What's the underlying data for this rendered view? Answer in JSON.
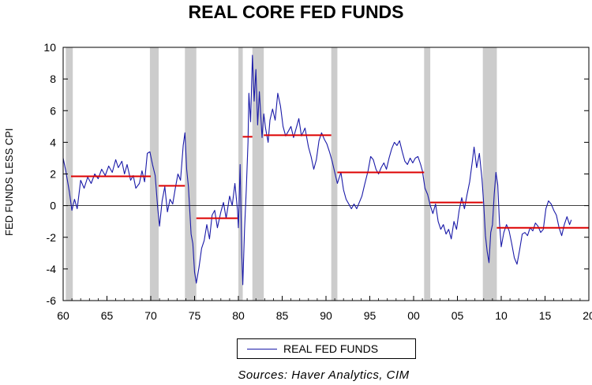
{
  "chart_data": {
    "type": "line",
    "title": "REAL CORE FED FUNDS",
    "ylabel": "FED FUNDS LESS CPI",
    "xlabel": "",
    "xlim": [
      1960,
      2020
    ],
    "ylim": [
      -6,
      10
    ],
    "x_ticks": [
      "60",
      "65",
      "70",
      "75",
      "80",
      "85",
      "90",
      "95",
      "00",
      "05",
      "10",
      "15",
      "20"
    ],
    "y_ticks": [
      "10",
      "8",
      "6",
      "4",
      "2",
      "0",
      "-2",
      "-4",
      "-6"
    ],
    "grid": false,
    "zero_line": true,
    "legend_position": "bottom-center",
    "series": [
      {
        "name": "REAL FED FUNDS",
        "color": "#1a1aa8",
        "points": [
          [
            1960.0,
            3.0
          ],
          [
            1960.3,
            2.2
          ],
          [
            1960.7,
            0.9
          ],
          [
            1961.0,
            -0.3
          ],
          [
            1961.3,
            0.4
          ],
          [
            1961.6,
            -0.2
          ],
          [
            1962.0,
            1.6
          ],
          [
            1962.4,
            1.1
          ],
          [
            1962.8,
            1.8
          ],
          [
            1963.2,
            1.4
          ],
          [
            1963.6,
            2.0
          ],
          [
            1964.0,
            1.7
          ],
          [
            1964.4,
            2.3
          ],
          [
            1964.8,
            1.9
          ],
          [
            1965.2,
            2.5
          ],
          [
            1965.6,
            2.1
          ],
          [
            1966.0,
            2.9
          ],
          [
            1966.3,
            2.4
          ],
          [
            1966.7,
            2.8
          ],
          [
            1967.0,
            2.0
          ],
          [
            1967.3,
            2.6
          ],
          [
            1967.7,
            1.6
          ],
          [
            1968.0,
            1.9
          ],
          [
            1968.3,
            1.1
          ],
          [
            1968.7,
            1.4
          ],
          [
            1969.0,
            2.2
          ],
          [
            1969.3,
            1.5
          ],
          [
            1969.6,
            3.3
          ],
          [
            1969.9,
            3.4
          ],
          [
            1970.2,
            2.6
          ],
          [
            1970.5,
            1.9
          ],
          [
            1970.8,
            -0.2
          ],
          [
            1971.0,
            -1.3
          ],
          [
            1971.3,
            0.3
          ],
          [
            1971.6,
            1.2
          ],
          [
            1971.9,
            -0.4
          ],
          [
            1972.2,
            0.4
          ],
          [
            1972.5,
            0.1
          ],
          [
            1972.8,
            1.1
          ],
          [
            1973.1,
            2.0
          ],
          [
            1973.4,
            1.6
          ],
          [
            1973.7,
            3.8
          ],
          [
            1973.9,
            4.6
          ],
          [
            1974.1,
            2.3
          ],
          [
            1974.3,
            1.2
          ],
          [
            1974.6,
            -1.8
          ],
          [
            1974.8,
            -2.4
          ],
          [
            1975.0,
            -4.2
          ],
          [
            1975.2,
            -4.9
          ],
          [
            1975.5,
            -3.9
          ],
          [
            1975.8,
            -2.7
          ],
          [
            1976.1,
            -2.2
          ],
          [
            1976.4,
            -1.2
          ],
          [
            1976.7,
            -2.1
          ],
          [
            1977.0,
            -0.6
          ],
          [
            1977.3,
            -0.3
          ],
          [
            1977.6,
            -1.4
          ],
          [
            1978.0,
            -0.4
          ],
          [
            1978.3,
            0.2
          ],
          [
            1978.6,
            -0.8
          ],
          [
            1979.0,
            0.6
          ],
          [
            1979.3,
            0.0
          ],
          [
            1979.6,
            1.4
          ],
          [
            1979.9,
            -0.3
          ],
          [
            1980.0,
            -1.4
          ],
          [
            1980.2,
            2.6
          ],
          [
            1980.4,
            -3.2
          ],
          [
            1980.5,
            -5.0
          ],
          [
            1980.7,
            -1.5
          ],
          [
            1980.9,
            1.0
          ],
          [
            1981.1,
            4.0
          ],
          [
            1981.2,
            7.1
          ],
          [
            1981.4,
            5.3
          ],
          [
            1981.6,
            9.5
          ],
          [
            1981.8,
            6.6
          ],
          [
            1982.0,
            8.6
          ],
          [
            1982.2,
            5.1
          ],
          [
            1982.4,
            7.2
          ],
          [
            1982.7,
            4.3
          ],
          [
            1982.9,
            5.8
          ],
          [
            1983.1,
            4.9
          ],
          [
            1983.4,
            4.0
          ],
          [
            1983.6,
            5.4
          ],
          [
            1983.9,
            6.1
          ],
          [
            1984.2,
            5.4
          ],
          [
            1984.5,
            7.1
          ],
          [
            1984.8,
            6.3
          ],
          [
            1985.1,
            5.0
          ],
          [
            1985.4,
            4.4
          ],
          [
            1985.7,
            4.7
          ],
          [
            1986.0,
            5.0
          ],
          [
            1986.3,
            4.3
          ],
          [
            1986.6,
            4.9
          ],
          [
            1986.9,
            5.5
          ],
          [
            1987.2,
            4.4
          ],
          [
            1987.6,
            4.9
          ],
          [
            1988.0,
            3.7
          ],
          [
            1988.3,
            3.1
          ],
          [
            1988.6,
            2.3
          ],
          [
            1988.9,
            2.9
          ],
          [
            1989.2,
            4.1
          ],
          [
            1989.5,
            4.6
          ],
          [
            1989.8,
            4.2
          ],
          [
            1990.1,
            3.9
          ],
          [
            1990.4,
            3.4
          ],
          [
            1990.7,
            2.8
          ],
          [
            1991.0,
            2.1
          ],
          [
            1991.3,
            1.4
          ],
          [
            1991.7,
            2.1
          ],
          [
            1992.0,
            1.0
          ],
          [
            1992.3,
            0.4
          ],
          [
            1992.6,
            0.1
          ],
          [
            1992.9,
            -0.2
          ],
          [
            1993.2,
            0.1
          ],
          [
            1993.5,
            -0.2
          ],
          [
            1993.8,
            0.2
          ],
          [
            1994.1,
            0.6
          ],
          [
            1994.4,
            1.3
          ],
          [
            1994.8,
            2.2
          ],
          [
            1995.1,
            3.1
          ],
          [
            1995.4,
            2.9
          ],
          [
            1995.7,
            2.3
          ],
          [
            1996.0,
            2.0
          ],
          [
            1996.3,
            2.4
          ],
          [
            1996.6,
            2.7
          ],
          [
            1996.9,
            2.3
          ],
          [
            1997.2,
            3.0
          ],
          [
            1997.5,
            3.6
          ],
          [
            1997.8,
            4.0
          ],
          [
            1998.1,
            3.8
          ],
          [
            1998.4,
            4.1
          ],
          [
            1998.7,
            3.4
          ],
          [
            1999.0,
            2.8
          ],
          [
            1999.3,
            2.6
          ],
          [
            1999.6,
            3.0
          ],
          [
            1999.9,
            2.7
          ],
          [
            2000.2,
            3.0
          ],
          [
            2000.5,
            3.1
          ],
          [
            2000.8,
            2.6
          ],
          [
            2001.0,
            2.2
          ],
          [
            2001.3,
            1.1
          ],
          [
            2001.6,
            0.7
          ],
          [
            2001.9,
            0.0
          ],
          [
            2002.2,
            -0.5
          ],
          [
            2002.5,
            0.1
          ],
          [
            2002.8,
            -1.0
          ],
          [
            2003.1,
            -1.5
          ],
          [
            2003.4,
            -1.2
          ],
          [
            2003.7,
            -1.8
          ],
          [
            2004.0,
            -1.5
          ],
          [
            2004.3,
            -2.1
          ],
          [
            2004.6,
            -1.0
          ],
          [
            2004.9,
            -1.5
          ],
          [
            2005.2,
            -0.3
          ],
          [
            2005.5,
            0.5
          ],
          [
            2005.8,
            -0.2
          ],
          [
            2006.1,
            0.7
          ],
          [
            2006.4,
            1.5
          ],
          [
            2006.7,
            2.8
          ],
          [
            2006.9,
            3.7
          ],
          [
            2007.2,
            2.4
          ],
          [
            2007.5,
            3.3
          ],
          [
            2007.8,
            1.7
          ],
          [
            2008.0,
            0.1
          ],
          [
            2008.2,
            -1.9
          ],
          [
            2008.4,
            -2.9
          ],
          [
            2008.6,
            -3.6
          ],
          [
            2008.8,
            -1.7
          ],
          [
            2009.0,
            -1.2
          ],
          [
            2009.2,
            0.7
          ],
          [
            2009.4,
            2.1
          ],
          [
            2009.6,
            1.3
          ],
          [
            2009.8,
            -1.1
          ],
          [
            2010.0,
            -2.6
          ],
          [
            2010.3,
            -1.7
          ],
          [
            2010.6,
            -1.2
          ],
          [
            2010.9,
            -1.6
          ],
          [
            2011.2,
            -2.4
          ],
          [
            2011.5,
            -3.3
          ],
          [
            2011.8,
            -3.7
          ],
          [
            2012.1,
            -2.8
          ],
          [
            2012.4,
            -1.8
          ],
          [
            2012.7,
            -1.7
          ],
          [
            2013.0,
            -1.9
          ],
          [
            2013.3,
            -1.4
          ],
          [
            2013.6,
            -1.6
          ],
          [
            2013.9,
            -1.1
          ],
          [
            2014.2,
            -1.3
          ],
          [
            2014.5,
            -1.7
          ],
          [
            2014.8,
            -1.5
          ],
          [
            2015.1,
            -0.2
          ],
          [
            2015.4,
            0.3
          ],
          [
            2015.7,
            0.1
          ],
          [
            2016.0,
            -0.3
          ],
          [
            2016.3,
            -0.6
          ],
          [
            2016.6,
            -1.4
          ],
          [
            2016.9,
            -1.9
          ],
          [
            2017.2,
            -1.2
          ],
          [
            2017.5,
            -0.7
          ],
          [
            2017.8,
            -1.2
          ],
          [
            2018.0,
            -0.9
          ]
        ]
      }
    ],
    "period_averages": {
      "color": "#dd0000",
      "segments": [
        {
          "x0": 1960.9,
          "x1": 1970.0,
          "y": 1.85
        },
        {
          "x0": 1970.9,
          "x1": 1973.9,
          "y": 1.25
        },
        {
          "x0": 1975.2,
          "x1": 1979.9,
          "y": -0.8
        },
        {
          "x0": 1980.5,
          "x1": 1981.6,
          "y": 4.35
        },
        {
          "x0": 1982.9,
          "x1": 1990.6,
          "y": 4.45
        },
        {
          "x0": 1991.3,
          "x1": 2001.2,
          "y": 2.1
        },
        {
          "x0": 2001.9,
          "x1": 2007.9,
          "y": 0.2
        },
        {
          "x0": 2009.5,
          "x1": 2020.8,
          "y": -1.4
        }
      ]
    },
    "recession_shading": {
      "color": "#cccccc",
      "periods": [
        [
          1960.3,
          1961.1
        ],
        [
          1969.9,
          1970.9
        ],
        [
          1973.9,
          1975.2
        ],
        [
          1980.0,
          1980.5
        ],
        [
          1981.6,
          1982.9
        ],
        [
          1990.6,
          1991.3
        ],
        [
          2001.2,
          2001.9
        ],
        [
          2007.9,
          2009.5
        ]
      ]
    }
  },
  "legend": {
    "label": "REAL FED FUNDS",
    "color": "#1a1aa8"
  },
  "source_text": "Sources:  Haver Analytics, CIM"
}
